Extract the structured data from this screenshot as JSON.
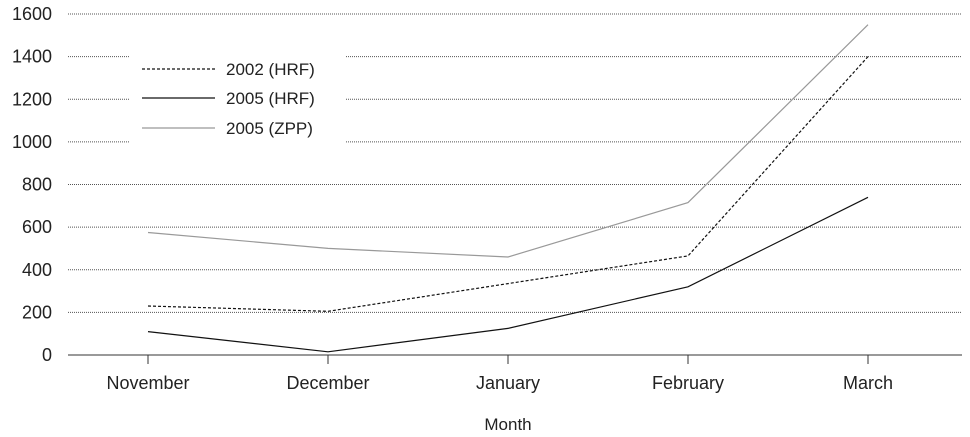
{
  "chart_data": {
    "type": "line",
    "title": "",
    "xlabel": "Month",
    "ylabel": "",
    "categories": [
      "November",
      "December",
      "January",
      "February",
      "March"
    ],
    "ylim": [
      0,
      1600
    ],
    "yticks": [
      "0",
      "200",
      "400",
      "600",
      "800",
      "1000",
      "1200",
      "1400",
      "1600"
    ],
    "grid": "horizontal dotted",
    "legend_position": "top-left",
    "series": [
      {
        "name": "2002 (HRF)",
        "values": [
          230,
          205,
          335,
          465,
          1400
        ],
        "style": "dashed",
        "color": "#111111"
      },
      {
        "name": "2005 (HRF)",
        "values": [
          110,
          15,
          125,
          320,
          740
        ],
        "style": "solid",
        "color": "#111111"
      },
      {
        "name": "2005 (ZPP)",
        "values": [
          575,
          500,
          460,
          715,
          1550
        ],
        "style": "solid",
        "color": "#999999"
      }
    ]
  }
}
